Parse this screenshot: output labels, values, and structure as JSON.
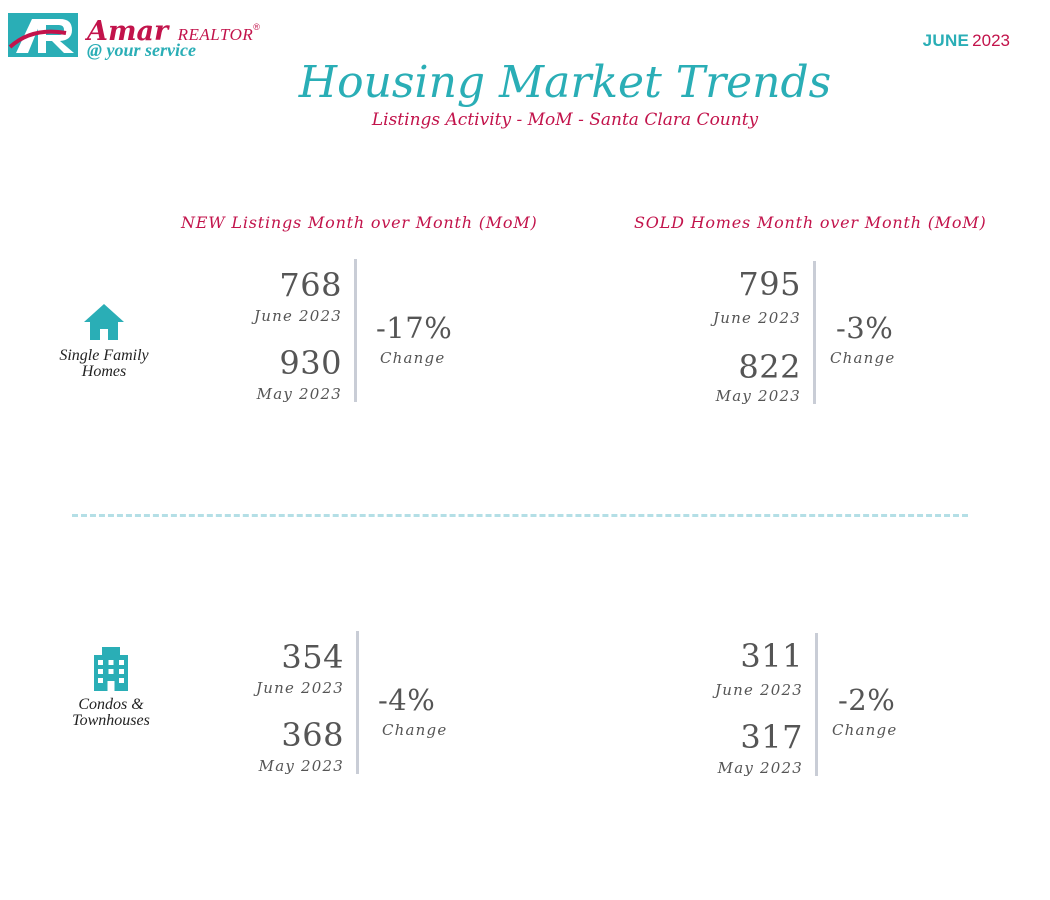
{
  "logo": {
    "brand": "Amar",
    "realtor": "REALTOR",
    "reg_mark": "®",
    "tagline": "@ your service",
    "colors": {
      "teal": "#2aaeb6",
      "magenta": "#c2134b"
    }
  },
  "date": {
    "month": "JUNE",
    "year": "2023"
  },
  "header": {
    "title": "Housing Market Trends",
    "subtitle": "Listings Activity - MoM - Santa Clara County"
  },
  "columns": {
    "new_heading": "NEW Listings Month over Month (MoM)",
    "sold_heading": "SOLD Homes Month over Month (MoM)"
  },
  "rows": [
    {
      "icon": "house-icon",
      "label_line1": "Single Family",
      "label_line2": "Homes",
      "new": {
        "current_value": "768",
        "current_label": "June 2023",
        "previous_value": "930",
        "previous_label": "May 2023",
        "change_pct": "-17%",
        "change_label": "Change"
      },
      "sold": {
        "current_value": "795",
        "current_label": "June 2023",
        "previous_value": "822",
        "previous_label": "May 2023",
        "change_pct": "-3%",
        "change_label": "Change"
      }
    },
    {
      "icon": "building-icon",
      "label_line1": "Condos &",
      "label_line2": "Townhouses",
      "new": {
        "current_value": "354",
        "current_label": "June 2023",
        "previous_value": "368",
        "previous_label": "May 2023",
        "change_pct": "-4%",
        "change_label": "Change"
      },
      "sold": {
        "current_value": "311",
        "current_label": "June 2023",
        "previous_value": "317",
        "previous_label": "May 2023",
        "change_pct": "-2%",
        "change_label": "Change"
      }
    }
  ],
  "colors": {
    "accent_teal": "#2aaeb6",
    "accent_magenta": "#c2134b",
    "divider": "#b4dfe6",
    "value_text": "#555555"
  }
}
